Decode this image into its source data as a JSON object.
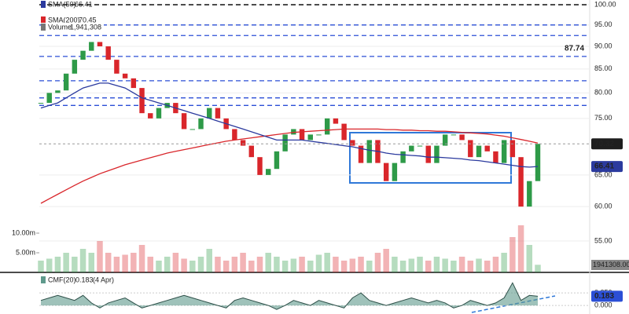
{
  "chart_data": {
    "type": "candlestick",
    "close": [
      78,
      80,
      80.5,
      84,
      87,
      89,
      91,
      90,
      87,
      84,
      83,
      81,
      76,
      75,
      77,
      78,
      76,
      73,
      73,
      75,
      77,
      75,
      73,
      71,
      70,
      68,
      65,
      66,
      69,
      72,
      73,
      71,
      72,
      72,
      75,
      74,
      71,
      70,
      67,
      71,
      67,
      64,
      67,
      69,
      70,
      70,
      67,
      70,
      72,
      72,
      71,
      68,
      70,
      69,
      67,
      71,
      68,
      60,
      64,
      70.32
    ],
    "up_color": "#2e9a48",
    "down_color": "#d9262b",
    "sma50": {
      "name": "SMA(50)",
      "color": "#2b3a9e",
      "values": [
        77,
        77.5,
        78,
        79,
        80,
        81,
        81.5,
        82,
        82,
        81.5,
        81,
        80,
        79,
        78.5,
        78,
        77.5,
        77,
        76.5,
        76,
        75.5,
        75,
        74.5,
        74,
        73.5,
        73,
        72.5,
        72,
        71.5,
        71,
        71,
        71,
        71,
        70.8,
        70.6,
        70.4,
        70.2,
        70,
        69.8,
        69.5,
        69.2,
        69,
        68.7,
        68.5,
        68.4,
        68.3,
        68.2,
        68,
        68,
        67.9,
        67.8,
        67.7,
        67.5,
        67.4,
        67.2,
        67,
        66.8,
        66.6,
        66.4,
        66.3,
        66.41
      ]
    },
    "sma200": {
      "name": "SMA(200)",
      "color": "#d9262b",
      "values": [
        60.5,
        61.2,
        61.9,
        62.6,
        63.3,
        64,
        64.6,
        65.2,
        65.7,
        66.2,
        66.7,
        67.1,
        67.5,
        67.9,
        68.3,
        68.7,
        69,
        69.3,
        69.6,
        69.9,
        70.2,
        70.5,
        70.8,
        71,
        71.2,
        71.4,
        71.6,
        71.8,
        72,
        72.2,
        72.4,
        72.5,
        72.6,
        72.7,
        72.8,
        72.9,
        73,
        73,
        73,
        73,
        73,
        72.9,
        72.9,
        72.8,
        72.8,
        72.7,
        72.7,
        72.6,
        72.6,
        72.5,
        72.4,
        72.3,
        72.2,
        72.1,
        71.9,
        71.7,
        71.4,
        71.1,
        70.8,
        70.45
      ]
    },
    "volume": {
      "name": "Volume",
      "label": "1,941,308",
      "value_label": "1941308.00",
      "values": [
        3000000,
        3500000,
        4000000,
        5000000,
        4000000,
        6000000,
        5000000,
        8000000,
        5000000,
        4000000,
        4500000,
        5000000,
        7000000,
        4000000,
        3000000,
        4000000,
        5000000,
        3500000,
        3000000,
        4000000,
        6000000,
        4000000,
        3000000,
        4000000,
        5000000,
        3000000,
        4000000,
        5000000,
        4000000,
        3000000,
        3500000,
        4000000,
        3000000,
        4500000,
        5000000,
        4000000,
        3000000,
        3500000,
        4000000,
        3000000,
        5000000,
        6000000,
        4000000,
        3000000,
        3500000,
        4000000,
        3000000,
        4000000,
        3500000,
        3000000,
        4000000,
        3000000,
        3500000,
        3000000,
        4000000,
        5000000,
        9000000,
        12000000,
        7000000,
        1941308
      ]
    },
    "vlim": [
      0,
      14000000
    ],
    "vticks": [
      {
        "value": 10000000,
        "label": "10.00m"
      },
      {
        "value": 5000000,
        "label": "5.00m"
      }
    ],
    "cmf": {
      "name": "CMF(20)",
      "date": "(4 Apr)",
      "color": "#5f9a8c",
      "values": [
        0.1,
        0.15,
        0.2,
        0.15,
        0.1,
        0.2,
        0.05,
        -0.05,
        0.05,
        0.1,
        0.15,
        0.05,
        -0.05,
        0,
        0.05,
        0.1,
        0.15,
        0.2,
        0.15,
        0.1,
        0.05,
        0,
        -0.05,
        0.1,
        0.15,
        0.1,
        0.05,
        0,
        -0.08,
        0,
        0.1,
        0.05,
        0,
        0.1,
        0.05,
        0,
        -0.05,
        0.15,
        0.25,
        0.1,
        0.05,
        0,
        0.05,
        0.1,
        0.15,
        0.1,
        0.05,
        0.1,
        0.05,
        -0.05,
        0,
        0.1,
        0.05,
        0,
        0.05,
        0.15,
        0.45,
        0.1,
        0.2,
        0.183
      ]
    },
    "cmflim": [
      -0.17,
      0.61
    ],
    "cmfticks": [
      {
        "value": 0.25,
        "label": "0.250"
      },
      {
        "value": 0,
        "label": "0.000"
      }
    ],
    "ylim": [
      51,
      101.2
    ],
    "log_scale": true,
    "yticks": [
      {
        "value": 100,
        "label": "100.00"
      },
      {
        "value": 95,
        "label": "95.00"
      },
      {
        "value": 90,
        "label": "90.00"
      },
      {
        "value": 85,
        "label": "85.00"
      },
      {
        "value": 80,
        "label": "80.00"
      },
      {
        "value": 75,
        "label": "75.00"
      },
      {
        "value": 65,
        "label": "65.00"
      },
      {
        "value": 60,
        "label": "60.00"
      },
      {
        "value": 55,
        "label": "55.00"
      }
    ],
    "top_line": 100,
    "level_lines": [
      95,
      92.5,
      87.74,
      82.5,
      79,
      77.5
    ],
    "level_color": "#2b4fd6",
    "level_label": "87.74"
  }
}
